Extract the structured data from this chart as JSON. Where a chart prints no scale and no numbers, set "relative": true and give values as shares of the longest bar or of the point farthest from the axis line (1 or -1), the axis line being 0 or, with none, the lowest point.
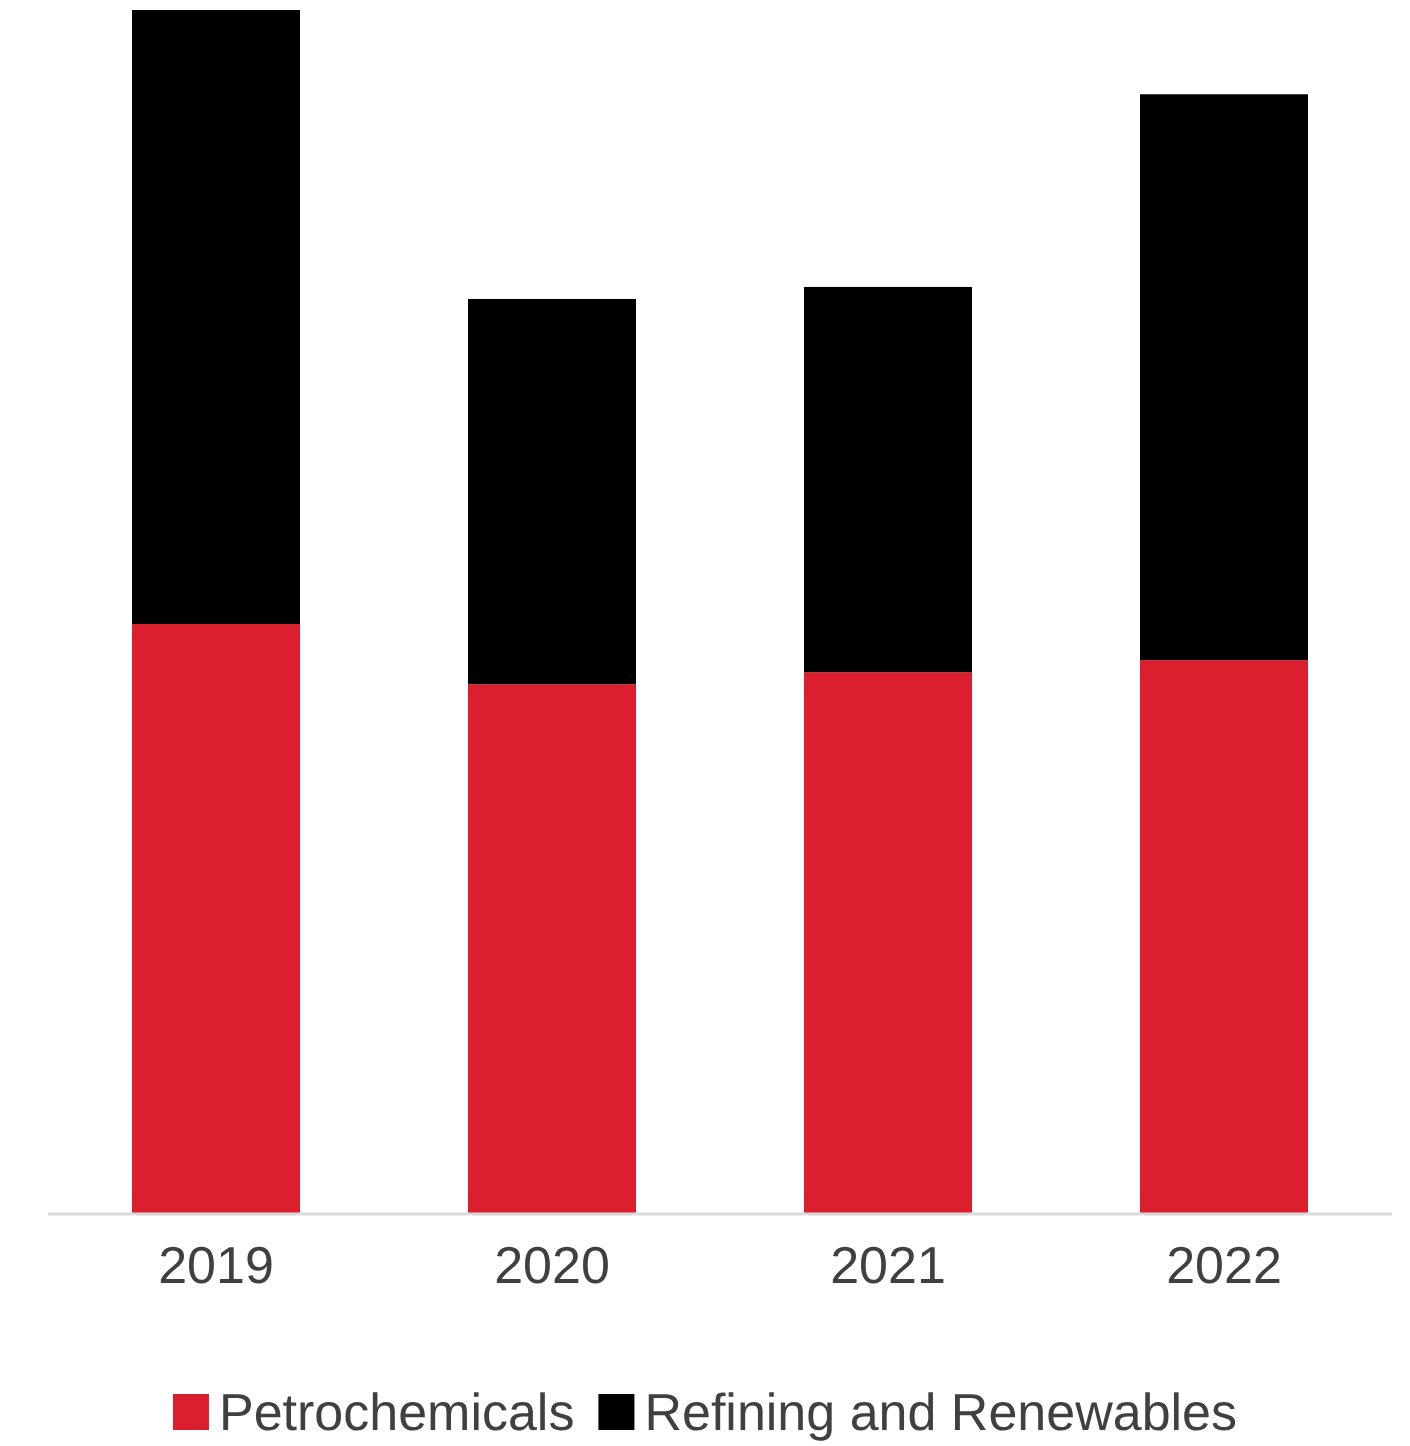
{
  "chart_data": {
    "type": "bar",
    "stacked": true,
    "relative": true,
    "categories": [
      "2019",
      "2020",
      "2021",
      "2022"
    ],
    "series": [
      {
        "name": "Petrochemicals",
        "color": "#dc1f2e",
        "values": [
          0.49,
          0.44,
          0.45,
          0.46
        ]
      },
      {
        "name": "Refining and Renewables",
        "color": "#000000",
        "values": [
          0.51,
          0.32,
          0.32,
          0.47
        ]
      }
    ],
    "legend": "bottom",
    "grid": false
  }
}
